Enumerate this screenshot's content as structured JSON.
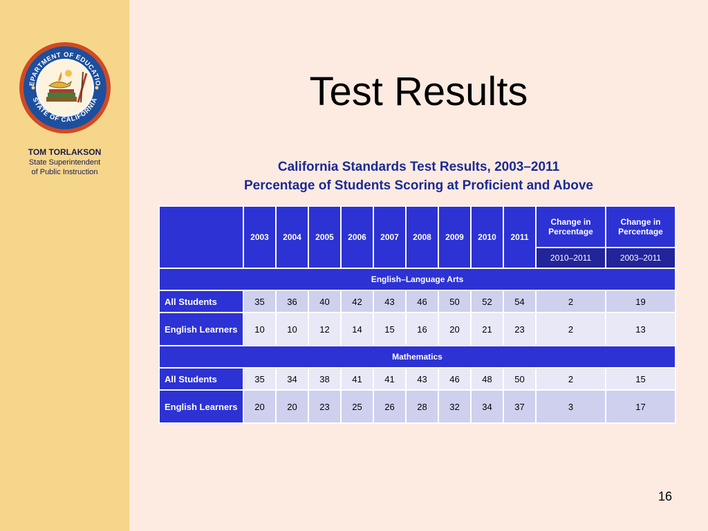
{
  "sidebar": {
    "name": "TOM TORLAKSON",
    "role_line1": "State Superintendent",
    "role_line2": "of Public Instruction",
    "seal_text_top": "DEPARTMENT OF EDUCATION",
    "seal_text_bottom": "STATE OF CALIFORNIA"
  },
  "slide": {
    "title": "Test Results",
    "page_number": "16"
  },
  "table": {
    "title_line1": "California Standards Test Results, 2003–2011",
    "title_line2": "Percentage of Students Scoring at Proficient and Above",
    "years": [
      "2003",
      "2004",
      "2005",
      "2006",
      "2007",
      "2008",
      "2009",
      "2010",
      "2011"
    ],
    "change_header_1": "Change in Percentage",
    "change_header_2": "Change in Percentage",
    "change_range_1": "2010–2011",
    "change_range_2": "2003–2011",
    "sections": [
      {
        "name": "English–Language Arts",
        "rows": [
          {
            "label": "All Students",
            "values": [
              "35",
              "36",
              "40",
              "42",
              "43",
              "46",
              "50",
              "52",
              "54"
            ],
            "change_1": "2",
            "change_2": "19"
          },
          {
            "label": "English Learners",
            "values": [
              "10",
              "10",
              "12",
              "14",
              "15",
              "16",
              "20",
              "21",
              "23"
            ],
            "change_1": "2",
            "change_2": "13"
          }
        ]
      },
      {
        "name": "Mathematics",
        "rows": [
          {
            "label": "All Students",
            "values": [
              "35",
              "34",
              "38",
              "41",
              "41",
              "43",
              "46",
              "48",
              "50"
            ],
            "change_1": "2",
            "change_2": "15"
          },
          {
            "label": "English Learners",
            "values": [
              "20",
              "20",
              "23",
              "25",
              "26",
              "28",
              "32",
              "34",
              "37"
            ],
            "change_1": "3",
            "change_2": "17"
          }
        ]
      }
    ]
  },
  "colors": {
    "sidebar_bg": "#f5d68a",
    "slide_bg": "#fdebe2",
    "header_blue": "#2d32d4",
    "title_blue": "#1c2a93",
    "row_light": "#e8e8f7",
    "row_shade": "#cfd0ee"
  }
}
